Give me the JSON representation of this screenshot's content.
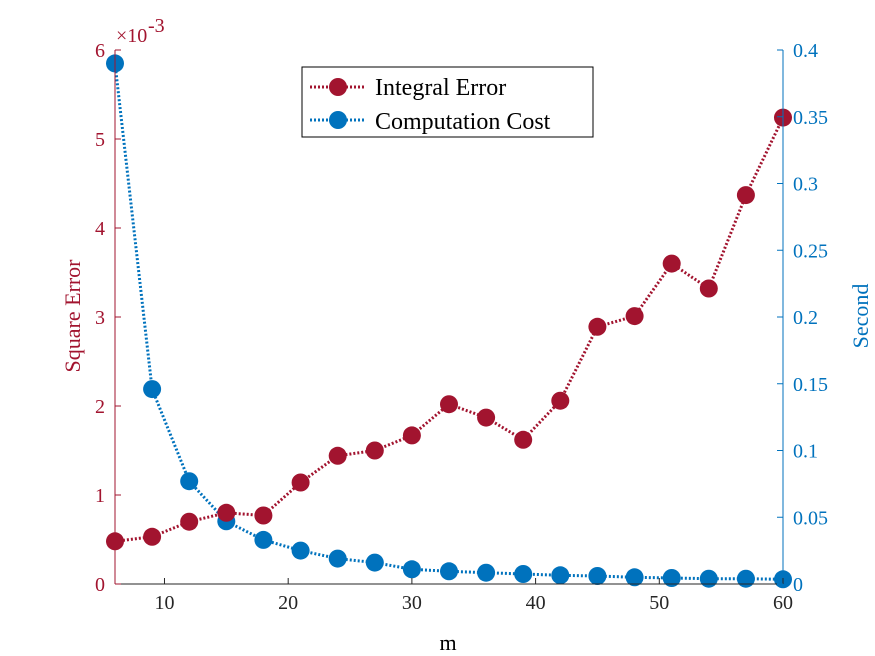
{
  "chart_data": {
    "type": "line",
    "x": [
      6,
      9,
      12,
      15,
      18,
      21,
      24,
      27,
      30,
      33,
      36,
      39,
      42,
      45,
      48,
      51,
      54,
      57,
      60
    ],
    "xlabel": "m",
    "xlim": [
      6,
      60
    ],
    "xticks": [
      10,
      20,
      30,
      40,
      50,
      60
    ],
    "y_left": {
      "label": "Square Error",
      "lim": [
        0,
        6
      ],
      "ticks": [
        0,
        1,
        2,
        3,
        4,
        5,
        6
      ],
      "exponent_label": "×10",
      "exponent_power": "-3",
      "color": "#a2142f"
    },
    "y_right": {
      "label": "Second",
      "lim": [
        0,
        0.4
      ],
      "ticks": [
        "0",
        "0.05",
        "0.1",
        "0.15",
        "0.2",
        "0.25",
        "0.3",
        "0.35",
        "0.4"
      ],
      "color": "#0072bd"
    },
    "series": [
      {
        "name": "Integral Error",
        "axis": "left",
        "color": "#a2142f",
        "values": [
          0.48,
          0.53,
          0.7,
          0.8,
          0.77,
          1.14,
          1.44,
          1.5,
          1.67,
          2.02,
          1.87,
          1.62,
          2.06,
          2.89,
          3.01,
          3.6,
          3.32,
          4.37,
          5.24
        ]
      },
      {
        "name": "Computation Cost",
        "axis": "right",
        "color": "#0072bd",
        "values": [
          0.39,
          0.146,
          0.077,
          0.047,
          0.033,
          0.025,
          0.019,
          0.016,
          0.011,
          0.0095,
          0.0085,
          0.0075,
          0.0065,
          0.006,
          0.005,
          0.0045,
          0.004,
          0.004,
          0.0035
        ]
      }
    ],
    "legend": {
      "placement": "top-center"
    },
    "grid": false
  }
}
